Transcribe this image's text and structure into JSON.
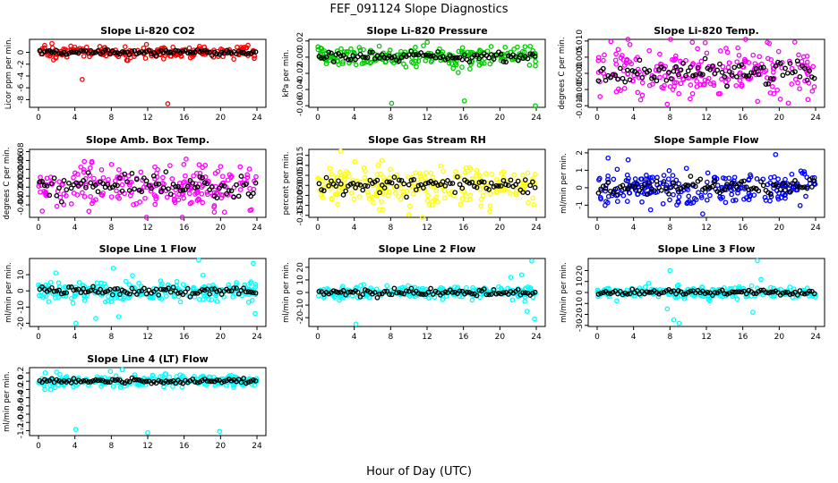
{
  "figure": {
    "title": "FEF_091124  Slope Diagnostics",
    "xlabel": "Hour of Day (UTC)"
  },
  "chart_data": [
    {
      "type": "scatter",
      "title": "Slope Li-820 CO2",
      "ylabel": "Licor ppm per min.",
      "color": "#ff0000",
      "xlim": [
        0,
        24
      ],
      "ylim": [
        -9.3,
        2.2
      ],
      "xticks": [
        0,
        4,
        8,
        12,
        16,
        20,
        24
      ],
      "yticks": [
        -8,
        -6,
        -4,
        -2,
        0
      ],
      "ytick_labels": [
        "-8",
        "-6",
        "-4",
        "-2",
        "0"
      ],
      "center": 0,
      "spread": 0.5,
      "outliers": [
        [
          4.8,
          -4.6
        ],
        [
          14.2,
          -8.7
        ]
      ]
    },
    {
      "type": "scatter",
      "title": "Slope Li-820 Pressure",
      "ylabel": "kPa per min.",
      "color": "#00cc00",
      "xlim": [
        0,
        24
      ],
      "ylim": [
        -0.062,
        0.022
      ],
      "xticks": [
        0,
        4,
        8,
        12,
        16,
        20,
        24
      ],
      "yticks": [
        -0.06,
        -0.04,
        -0.02,
        0.0,
        0.02
      ],
      "ytick_labels": [
        "-0.06",
        "-0.04",
        "-0.02",
        "0.00",
        "0.02"
      ],
      "center": 0.001,
      "spread": 0.006,
      "outliers": [
        [
          8.1,
          -0.057
        ],
        [
          16.1,
          -0.054
        ],
        [
          23.9,
          -0.06
        ]
      ]
    },
    {
      "type": "scatter",
      "title": "Slope Li-820 Temp.",
      "ylabel": "degrees C per min.",
      "color": "#ff00ff",
      "xlim": [
        0,
        24
      ],
      "ylim": [
        -0.0105,
        0.0105
      ],
      "xticks": [
        0,
        4,
        8,
        12,
        16,
        20,
        24
      ],
      "yticks": [
        -0.01,
        -0.005,
        0.0,
        0.005,
        0.01
      ],
      "ytick_labels": [
        "-0.010",
        "-0.005",
        "0.000",
        "0.005",
        "0.010"
      ],
      "center": 0.0,
      "spread": 0.004,
      "outliers": [
        [
          1.5,
          0.0098
        ],
        [
          7.7,
          -0.0095
        ],
        [
          18.7,
          0.0096
        ],
        [
          21.0,
          -0.0092
        ]
      ]
    },
    {
      "type": "scatter",
      "title": "Slope Amb. Box Temp.",
      "ylabel": "degrees C per min.",
      "color": "#ff00ff",
      "xlim": [
        0,
        24
      ],
      "ylim": [
        -0.068,
        0.085
      ],
      "xticks": [
        0,
        4,
        8,
        12,
        16,
        20,
        24
      ],
      "yticks": [
        -0.04,
        -0.02,
        0.0,
        0.02,
        0.04,
        0.06,
        0.08
      ],
      "ytick_labels": [
        "-0.04",
        "-0.02",
        "0.00",
        "0.02",
        "0.04",
        "0.06",
        "0.08"
      ],
      "center": 0.0,
      "spread": 0.025,
      "outliers": []
    },
    {
      "type": "scatter",
      "title": "Slope Gas Stream RH",
      "ylabel": "percent per min.",
      "color": "#ffff00",
      "xlim": [
        0,
        24
      ],
      "ylim": [
        -0.16,
        0.18
      ],
      "xticks": [
        0,
        4,
        8,
        12,
        16,
        20,
        24
      ],
      "yticks": [
        -0.15,
        -0.1,
        -0.05,
        0.0,
        0.05,
        0.1,
        0.15
      ],
      "ytick_labels": [
        "-0.15",
        "-0.10",
        "-0.05",
        "0.00",
        "0.05",
        "0.10",
        "0.15"
      ],
      "center": 0.0,
      "spread": 0.05,
      "outliers": [
        [
          11.5,
          -0.16
        ],
        [
          2.5,
          0.17
        ]
      ]
    },
    {
      "type": "scatter",
      "title": "Slope Sample Flow",
      "ylabel": "ml/min per min.",
      "color": "#0000ff",
      "xlim": [
        0,
        24
      ],
      "ylim": [
        -1.7,
        2.2
      ],
      "xticks": [
        0,
        4,
        8,
        12,
        16,
        20,
        24
      ],
      "yticks": [
        -1,
        0,
        1,
        2
      ],
      "ytick_labels": [
        "-1",
        "0",
        "1",
        "2"
      ],
      "center": 0.0,
      "spread": 0.5,
      "outliers": [
        [
          1.2,
          1.7
        ],
        [
          19.6,
          1.9
        ],
        [
          3.4,
          1.6
        ],
        [
          11.6,
          -1.5
        ]
      ]
    },
    {
      "type": "scatter",
      "title": "Slope Line 1 Flow",
      "ylabel": "ml/min per min.",
      "color": "#00ffff",
      "xlim": [
        0,
        24
      ],
      "ylim": [
        -22,
        20
      ],
      "xticks": [
        0,
        4,
        8,
        12,
        16,
        20,
        24
      ],
      "yticks": [
        -20,
        -10,
        0,
        10
      ],
      "ytick_labels": [
        "-20",
        "-10",
        "0",
        "10"
      ],
      "center": 0.0,
      "spread": 3.0,
      "outliers": [
        [
          8.2,
          14
        ],
        [
          17.6,
          19
        ],
        [
          23.6,
          17
        ],
        [
          4.1,
          -20
        ],
        [
          6.3,
          -17
        ],
        [
          8.8,
          -16
        ],
        [
          23.8,
          -14
        ]
      ]
    },
    {
      "type": "scatter",
      "title": "Slope Line 2 Flow",
      "ylabel": "ml/min per min.",
      "color": "#00ffff",
      "xlim": [
        0,
        24
      ],
      "ylim": [
        -27,
        27
      ],
      "xticks": [
        0,
        4,
        8,
        12,
        16,
        20,
        24
      ],
      "yticks": [
        -20,
        -10,
        0,
        10,
        20
      ],
      "ytick_labels": [
        "-20",
        "-10",
        "0",
        "10",
        "20"
      ],
      "center": 0.0,
      "spread": 2.5,
      "outliers": [
        [
          4.2,
          -25
        ],
        [
          23.5,
          25
        ],
        [
          21.2,
          12
        ],
        [
          22.4,
          14
        ],
        [
          23.0,
          -15
        ],
        [
          23.8,
          -21
        ]
      ]
    },
    {
      "type": "scatter",
      "title": "Slope Line 3 Flow",
      "ylabel": "ml/min per min.",
      "color": "#00ffff",
      "xlim": [
        0,
        24
      ],
      "ylim": [
        -31,
        31
      ],
      "xticks": [
        0,
        4,
        8,
        12,
        16,
        20,
        24
      ],
      "yticks": [
        -30,
        -20,
        -10,
        0,
        10,
        20
      ],
      "ytick_labels": [
        "-30",
        "-20",
        "-10",
        "0",
        "10",
        "20"
      ],
      "center": 0.0,
      "spread": 2.5,
      "outliers": [
        [
          8.0,
          20
        ],
        [
          17.6,
          29
        ],
        [
          18.0,
          12
        ],
        [
          8.4,
          -25
        ],
        [
          9.0,
          -28
        ],
        [
          17.1,
          -18
        ],
        [
          7.7,
          -15
        ]
      ]
    },
    {
      "type": "scatter",
      "title": "Slope Line 4 (LT) Flow",
      "ylabel": "ml/min per min.",
      "color": "#00ffff",
      "xlim": [
        0,
        24
      ],
      "ylim": [
        -1.32,
        0.33
      ],
      "xticks": [
        0,
        4,
        8,
        12,
        16,
        20,
        24
      ],
      "yticks": [
        -1.2,
        -1.0,
        -0.8,
        -0.6,
        -0.4,
        -0.2,
        0.0,
        0.2
      ],
      "ytick_labels": [
        "-1.2",
        "-1.0",
        "-0.8",
        "-0.6",
        "-0.4",
        "-0.2",
        "0.0",
        "0.2"
      ],
      "center": 0.0,
      "spread": 0.07,
      "outliers": [
        [
          4.1,
          -1.17
        ],
        [
          12.0,
          -1.25
        ],
        [
          19.9,
          -1.22
        ],
        [
          9.2,
          0.28
        ]
      ]
    }
  ]
}
